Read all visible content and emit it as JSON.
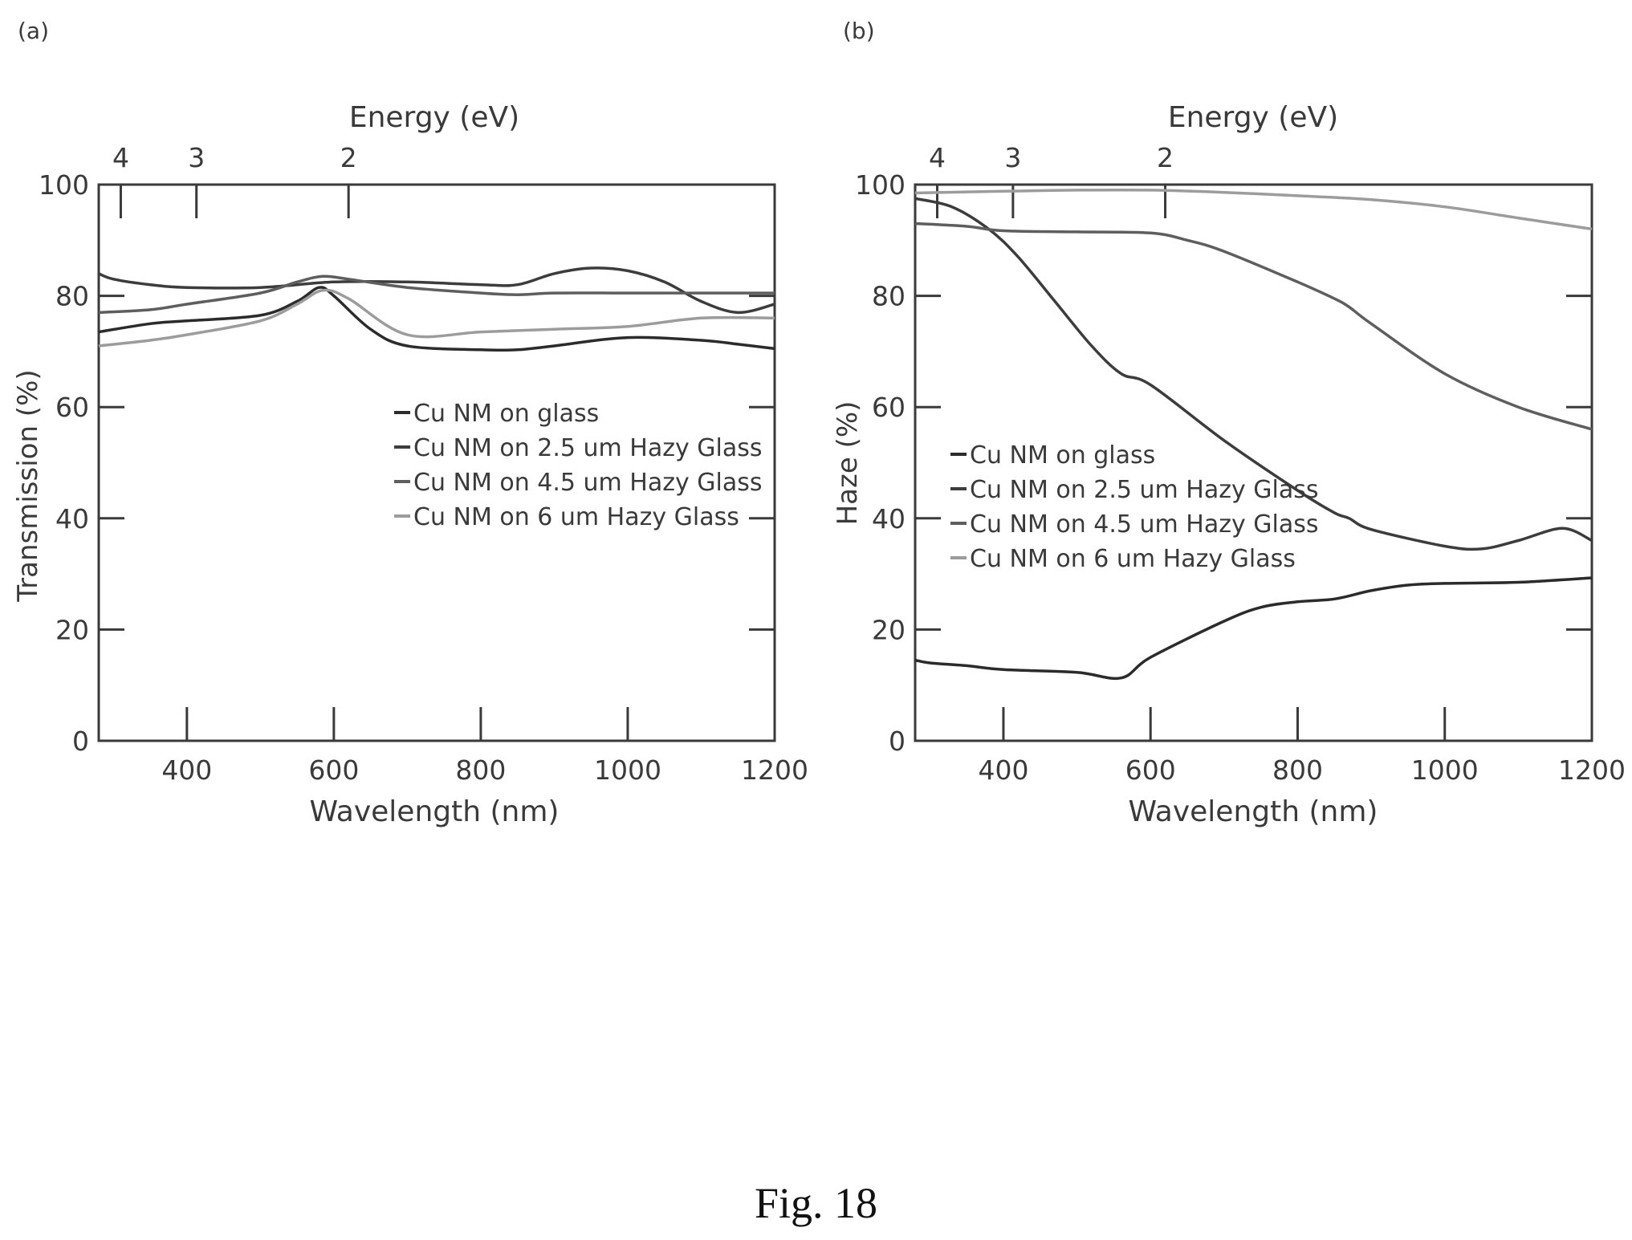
{
  "figure": {
    "caption": "Fig. 18"
  },
  "chart_data": [
    {
      "panel_label": "(a)",
      "type": "line",
      "xlabel": "Wavelength (nm)",
      "ylabel": "Transmission (%)",
      "top_axis_label": "Energy (eV)",
      "xlim": [
        280,
        1200
      ],
      "ylim": [
        0,
        100
      ],
      "xticks": [
        400,
        600,
        800,
        1000,
        1200
      ],
      "yticks": [
        0,
        20,
        40,
        60,
        80,
        100
      ],
      "top_ticks": [
        {
          "label": "4",
          "wavelength": 310
        },
        {
          "label": "3",
          "wavelength": 413
        },
        {
          "label": "2",
          "wavelength": 620
        }
      ],
      "grid": false,
      "legend_position": "center-right",
      "series": [
        {
          "name": "Cu NM on glass",
          "color": "#2b2b2b",
          "x": [
            280,
            350,
            400,
            500,
            550,
            580,
            600,
            650,
            700,
            800,
            850,
            900,
            1000,
            1100,
            1150,
            1200
          ],
          "y": [
            73.5,
            75,
            75.5,
            76.5,
            79,
            81.5,
            80,
            74,
            71,
            70.3,
            70.3,
            71,
            72.5,
            72,
            71.3,
            70.5
          ]
        },
        {
          "name": "Cu NM on 2.5 um Hazy Glass",
          "color": "#3c3c3c",
          "x": [
            280,
            300,
            350,
            400,
            500,
            600,
            700,
            800,
            850,
            900,
            950,
            1000,
            1050,
            1100,
            1150,
            1200
          ],
          "y": [
            84,
            83,
            82,
            81.5,
            81.5,
            82.5,
            82.5,
            82,
            82,
            84,
            85,
            84.5,
            82.5,
            79,
            77,
            78.5
          ]
        },
        {
          "name": "Cu NM on 4.5 um Hazy Glass",
          "color": "#5e5e5e",
          "x": [
            280,
            350,
            400,
            500,
            550,
            585,
            620,
            700,
            800,
            850,
            900,
            1000,
            1100,
            1200
          ],
          "y": [
            77,
            77.5,
            78.5,
            80.5,
            82.5,
            83.5,
            83,
            81.5,
            80.5,
            80.2,
            80.5,
            80.5,
            80.5,
            80.5
          ]
        },
        {
          "name": "Cu NM on 6 um Hazy Glass",
          "color": "#9c9c9c",
          "x": [
            280,
            350,
            400,
            500,
            550,
            585,
            620,
            700,
            800,
            900,
            1000,
            1100,
            1200
          ],
          "y": [
            71,
            72,
            73,
            75.5,
            78.5,
            81,
            79.5,
            73,
            73.5,
            74,
            74.5,
            76,
            76
          ]
        }
      ]
    },
    {
      "panel_label": "(b)",
      "type": "line",
      "xlabel": "Wavelength (nm)",
      "ylabel": "Haze (%)",
      "top_axis_label": "Energy (eV)",
      "xlim": [
        280,
        1200
      ],
      "ylim": [
        0,
        100
      ],
      "xticks": [
        400,
        600,
        800,
        1000,
        1200
      ],
      "yticks": [
        0,
        20,
        40,
        60,
        80,
        100
      ],
      "top_ticks": [
        {
          "label": "4",
          "wavelength": 310
        },
        {
          "label": "3",
          "wavelength": 413
        },
        {
          "label": "2",
          "wavelength": 620
        }
      ],
      "grid": false,
      "legend_position": "center-left",
      "series": [
        {
          "name": "Cu NM on glass",
          "color": "#2b2b2b",
          "x": [
            280,
            300,
            350,
            400,
            500,
            560,
            600,
            700,
            750,
            800,
            850,
            900,
            950,
            1000,
            1100,
            1200
          ],
          "y": [
            14.5,
            14,
            13.5,
            12.8,
            12.3,
            11.3,
            15,
            21.5,
            24,
            25,
            25.5,
            27,
            28,
            28.3,
            28.5,
            29.3
          ]
        },
        {
          "name": "Cu NM on 2.5 um Hazy Glass",
          "color": "#3c3c3c",
          "x": [
            280,
            330,
            380,
            420,
            470,
            520,
            560,
            600,
            700,
            800,
            850,
            870,
            900,
            1000,
            1050,
            1100,
            1160,
            1200
          ],
          "y": [
            97.5,
            96,
            92,
            87,
            79,
            71,
            66,
            64,
            54,
            45,
            41,
            40,
            38,
            35,
            34.5,
            36,
            38.2,
            36
          ]
        },
        {
          "name": "Cu NM on 4.5 um Hazy Glass",
          "color": "#5e5e5e",
          "x": [
            280,
            350,
            400,
            500,
            600,
            650,
            700,
            800,
            850,
            870,
            900,
            1000,
            1100,
            1200
          ],
          "y": [
            93,
            92.5,
            91.7,
            91.5,
            91.3,
            90,
            88,
            82.5,
            79.5,
            78,
            75,
            66,
            60,
            56
          ]
        },
        {
          "name": "Cu NM on 6 um Hazy Glass",
          "color": "#9c9c9c",
          "x": [
            280,
            400,
            500,
            600,
            700,
            800,
            900,
            1000,
            1100,
            1200
          ],
          "y": [
            98.5,
            98.8,
            99,
            99,
            98.6,
            98,
            97.3,
            96,
            94,
            92
          ]
        }
      ]
    }
  ]
}
